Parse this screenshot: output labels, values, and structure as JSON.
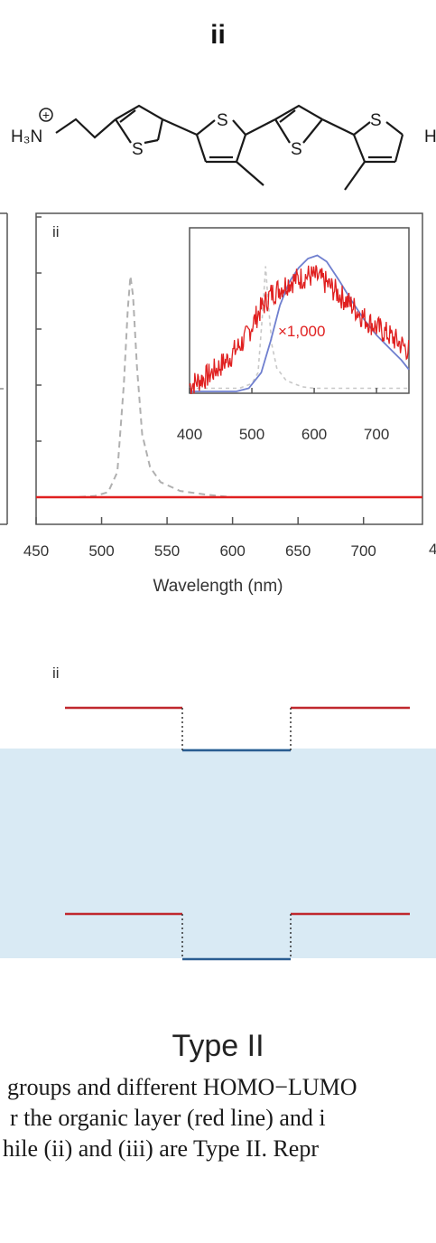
{
  "panel": {
    "title": "ii",
    "plot_label": "ii",
    "diagram_label": "ii",
    "diagram_type": "Type II"
  },
  "molecule": {
    "ammonium_left": "H₃N",
    "charge": "+",
    "sulfur": "S",
    "right_fragment": "H"
  },
  "chart_data": [
    {
      "type": "line",
      "xlabel": "Wavelength (nm)",
      "xlim": [
        450,
        745
      ],
      "ylim": [
        0,
        1
      ],
      "xticks": [
        "450",
        "500",
        "550",
        "600",
        "650",
        "700"
      ],
      "series": [
        {
          "name": "dashed grey emission",
          "color": "#b0b0b0",
          "style": "dashed",
          "x": [
            450,
            480,
            495,
            505,
            512,
            517,
            520,
            522,
            524,
            527,
            531,
            537,
            545,
            560,
            580,
            600,
            650,
            745
          ],
          "y": [
            0,
            0,
            0.005,
            0.02,
            0.1,
            0.45,
            0.75,
            0.88,
            0.8,
            0.52,
            0.25,
            0.12,
            0.06,
            0.025,
            0.01,
            0,
            0,
            0
          ]
        },
        {
          "name": "red line",
          "color": "#e02020",
          "style": "solid",
          "x": [
            450,
            745
          ],
          "y": [
            0,
            0
          ]
        }
      ]
    },
    {
      "type": "line",
      "title": "inset",
      "annotation": "×1,000",
      "xlim": [
        400,
        752
      ],
      "ylim": [
        0,
        1
      ],
      "xticks": [
        "400",
        "500",
        "600",
        "700"
      ],
      "series": [
        {
          "name": "dashed grey",
          "color": "#c8c8c8",
          "style": "dashed",
          "x": [
            400,
            480,
            500,
            510,
            518,
            522,
            526,
            532,
            540,
            555,
            580,
            600,
            752
          ],
          "y": [
            0.02,
            0.02,
            0.05,
            0.12,
            0.55,
            0.8,
            0.58,
            0.3,
            0.15,
            0.07,
            0.03,
            0.02,
            0.02
          ]
        },
        {
          "name": "blue",
          "color": "#6f7fcf",
          "style": "solid",
          "x": [
            400,
            475,
            495,
            515,
            530,
            545,
            560,
            575,
            590,
            605,
            620,
            640,
            660,
            680,
            700,
            720,
            740,
            752
          ],
          "y": [
            0,
            0,
            0.02,
            0.12,
            0.32,
            0.55,
            0.7,
            0.79,
            0.85,
            0.87,
            0.83,
            0.71,
            0.58,
            0.46,
            0.36,
            0.28,
            0.2,
            0.14
          ]
        },
        {
          "name": "red ×1,000",
          "color": "#e02020",
          "style": "solid",
          "x": [
            400,
            430,
            460,
            490,
            510,
            530,
            545,
            560,
            575,
            590,
            605,
            620,
            640,
            660,
            680,
            700,
            720,
            740,
            752
          ],
          "y": [
            0.04,
            0.1,
            0.2,
            0.34,
            0.5,
            0.62,
            0.66,
            0.7,
            0.72,
            0.74,
            0.73,
            0.69,
            0.62,
            0.55,
            0.47,
            0.41,
            0.36,
            0.3,
            0.26
          ]
        }
      ]
    }
  ],
  "caption": {
    "line1": "groups and different HOMO−LUMO",
    "line2": "r the organic layer (red line) and i",
    "line3": "hile (ii) and (iii) are Type II. Repr"
  }
}
